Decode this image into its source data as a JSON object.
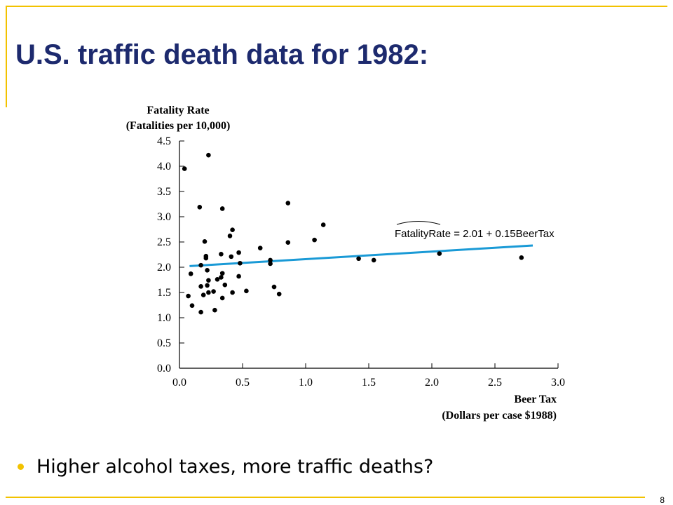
{
  "slide": {
    "title": "U.S. traffic death data for 1982:",
    "bullet": "Higher alcohol taxes, more traffic deaths?",
    "page_number": "8",
    "accent_color": "#f2c200",
    "title_color": "#1d2a6e"
  },
  "chart_data": {
    "type": "scatter",
    "ylabel_line1": "Fatality Rate",
    "ylabel_line2": "(Fatalities per 10,000)",
    "xlabel_line1": "Beer Tax",
    "xlabel_line2": "(Dollars per case $1988)",
    "xlim": [
      0.0,
      3.0
    ],
    "ylim": [
      0.0,
      4.5
    ],
    "xticks": [
      "0.0",
      "0.5",
      "1.0",
      "1.5",
      "2.0",
      "2.5",
      "3.0"
    ],
    "yticks": [
      "0.0",
      "0.5",
      "1.0",
      "1.5",
      "2.0",
      "2.5",
      "3.0",
      "3.5",
      "4.0",
      "4.5"
    ],
    "grid": false,
    "regression_label": "FatalityRate = 2.01 + 0.15BeerTax",
    "regression": {
      "intercept": 2.01,
      "slope": 0.15,
      "x_range": [
        0.08,
        2.8
      ],
      "color": "#1a9ad6"
    },
    "points": [
      [
        0.04,
        3.95
      ],
      [
        0.23,
        4.22
      ],
      [
        0.16,
        3.19
      ],
      [
        0.34,
        3.16
      ],
      [
        0.86,
        3.27
      ],
      [
        1.14,
        2.84
      ],
      [
        0.42,
        2.74
      ],
      [
        0.4,
        2.62
      ],
      [
        0.2,
        2.51
      ],
      [
        0.86,
        2.49
      ],
      [
        1.07,
        2.54
      ],
      [
        0.64,
        2.38
      ],
      [
        0.47,
        2.29
      ],
      [
        0.33,
        2.26
      ],
      [
        0.21,
        2.22
      ],
      [
        0.21,
        2.18
      ],
      [
        0.41,
        2.21
      ],
      [
        0.72,
        2.14
      ],
      [
        0.48,
        2.08
      ],
      [
        0.72,
        2.07
      ],
      [
        0.17,
        2.04
      ],
      [
        1.42,
        2.17
      ],
      [
        1.54,
        2.14
      ],
      [
        2.06,
        2.27
      ],
      [
        2.71,
        2.19
      ],
      [
        0.22,
        1.94
      ],
      [
        0.09,
        1.87
      ],
      [
        0.34,
        1.88
      ],
      [
        0.33,
        1.8
      ],
      [
        0.3,
        1.76
      ],
      [
        0.47,
        1.82
      ],
      [
        0.23,
        1.74
      ],
      [
        0.17,
        1.62
      ],
      [
        0.22,
        1.64
      ],
      [
        0.36,
        1.65
      ],
      [
        0.75,
        1.61
      ],
      [
        0.27,
        1.52
      ],
      [
        0.23,
        1.5
      ],
      [
        0.19,
        1.45
      ],
      [
        0.07,
        1.43
      ],
      [
        0.42,
        1.5
      ],
      [
        0.53,
        1.53
      ],
      [
        0.79,
        1.47
      ],
      [
        0.34,
        1.39
      ],
      [
        0.1,
        1.24
      ],
      [
        0.17,
        1.11
      ],
      [
        0.28,
        1.15
      ]
    ]
  }
}
